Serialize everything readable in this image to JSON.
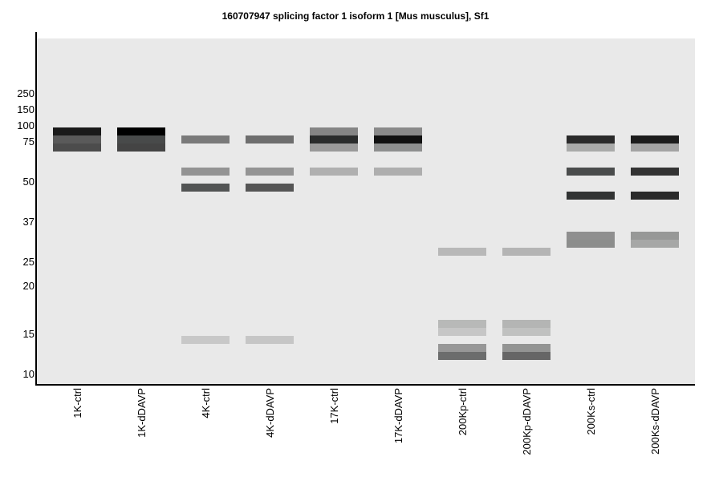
{
  "chart_data": {
    "type": "western-blot",
    "title": "160707947 splicing factor 1 isoform 1 [Mus musculus], Sf1",
    "y_ticks": [
      "250",
      "150",
      "100",
      "75",
      "50",
      "37",
      "25",
      "20",
      "15",
      "10"
    ],
    "lanes": [
      {
        "label": "1K-ctrl",
        "bands": [
          {
            "row": 0,
            "color": "#1a1a1a"
          },
          {
            "row": 1,
            "color": "#5a5a5a"
          },
          {
            "row": 2,
            "color": "#4c4c4c"
          }
        ]
      },
      {
        "label": "1K-dDAVP",
        "bands": [
          {
            "row": 0,
            "color": "#000000"
          },
          {
            "row": 1,
            "color": "#484a4a"
          },
          {
            "row": 2,
            "color": "#444444"
          }
        ]
      },
      {
        "label": "4K-ctrl",
        "bands": [
          {
            "row": 1,
            "color": "#7a7a7a"
          },
          {
            "row": 5,
            "color": "#939393"
          },
          {
            "row": 7,
            "color": "#525454"
          },
          {
            "row": 26,
            "color": "#c8c8c8"
          }
        ]
      },
      {
        "label": "4K-dDAVP",
        "bands": [
          {
            "row": 1,
            "color": "#6e6e6e"
          },
          {
            "row": 5,
            "color": "#949494"
          },
          {
            "row": 7,
            "color": "#555555"
          },
          {
            "row": 26,
            "color": "#c6c6c6"
          }
        ]
      },
      {
        "label": "17K-ctrl",
        "bands": [
          {
            "row": 0,
            "color": "#858585"
          },
          {
            "row": 1,
            "color": "#2a2c2c"
          },
          {
            "row": 2,
            "color": "#9a9a9a"
          },
          {
            "row": 5,
            "color": "#b0b0b0"
          }
        ]
      },
      {
        "label": "17K-dDAVP",
        "bands": [
          {
            "row": 0,
            "color": "#8a8a8a"
          },
          {
            "row": 1,
            "color": "#111111"
          },
          {
            "row": 2,
            "color": "#8e8f8f"
          },
          {
            "row": 5,
            "color": "#aeaeae"
          }
        ]
      },
      {
        "label": "200Kp-ctrl",
        "bands": [
          {
            "row": 15,
            "color": "#b8b8b8"
          },
          {
            "row": 24,
            "color": "#b8b9b8"
          },
          {
            "row": 25,
            "color": "#c6c6c6"
          },
          {
            "row": 27,
            "color": "#979797"
          },
          {
            "row": 28,
            "color": "#6c6d6d"
          }
        ]
      },
      {
        "label": "200Kp-dDAVP",
        "bands": [
          {
            "row": 15,
            "color": "#b4b4b4"
          },
          {
            "row": 24,
            "color": "#b4b5b4"
          },
          {
            "row": 25,
            "color": "#c0c1c0"
          },
          {
            "row": 27,
            "color": "#939493"
          },
          {
            "row": 28,
            "color": "#666666"
          }
        ]
      },
      {
        "label": "200Ks-ctrl",
        "bands": [
          {
            "row": 1,
            "color": "#2a2a2a"
          },
          {
            "row": 2,
            "color": "#a9aaa9"
          },
          {
            "row": 5,
            "color": "#4a4c4c"
          },
          {
            "row": 8,
            "color": "#313333"
          },
          {
            "row": 13,
            "color": "#8f8f8f"
          },
          {
            "row": 14,
            "color": "#8c8d8c"
          }
        ]
      },
      {
        "label": "200Ks-dDAVP",
        "bands": [
          {
            "row": 1,
            "color": "#1c1c1c"
          },
          {
            "row": 2,
            "color": "#a3a3a3"
          },
          {
            "row": 5,
            "color": "#333333"
          },
          {
            "row": 8,
            "color": "#2a2a2a"
          },
          {
            "row": 13,
            "color": "#979897"
          },
          {
            "row": 14,
            "color": "#a6a7a6"
          }
        ]
      }
    ],
    "gel_color": "#e9e9e9",
    "grid": false,
    "legend": "none"
  }
}
